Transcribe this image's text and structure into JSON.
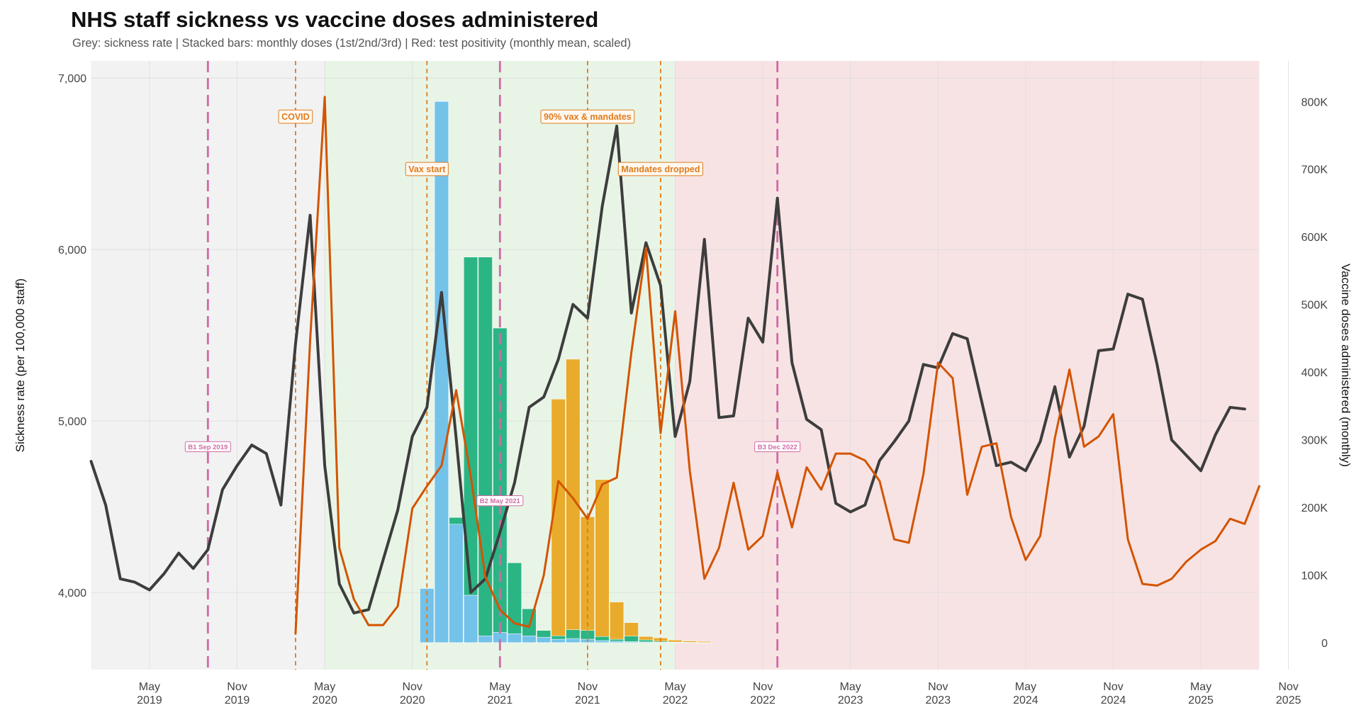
{
  "title": "NHS staff sickness vs vaccine doses administered",
  "subtitle": "Grey: sickness rate | Stacked bars: monthly doses (1st/2nd/3rd) | Red: test positivity (monthly mean, scaled)",
  "colors": {
    "sickness": "#3d3d3d",
    "positivity": "#d35400",
    "dose1": "#73c2ea",
    "dose2": "#2bb585",
    "dose3": "#e8ab2b",
    "phase_pre": "#f2f2f2",
    "phase_mandate": "#e8f5e6",
    "phase_post": "#f8e3e4",
    "event_line": "#e07b1d",
    "baseline_line": "#d06aa5"
  },
  "chart_data": {
    "type": "line",
    "start_month": "2019-01",
    "x_axis_ticks": [
      {
        "month": "2019-05",
        "label1": "May",
        "label2": "2019"
      },
      {
        "month": "2019-11",
        "label1": "Nov",
        "label2": "2019"
      },
      {
        "month": "2020-05",
        "label1": "May",
        "label2": "2020"
      },
      {
        "month": "2020-11",
        "label1": "Nov",
        "label2": "2020"
      },
      {
        "month": "2021-05",
        "label1": "May",
        "label2": "2021"
      },
      {
        "month": "2021-11",
        "label1": "Nov",
        "label2": "2021"
      },
      {
        "month": "2022-05",
        "label1": "May",
        "label2": "2022"
      },
      {
        "month": "2022-11",
        "label1": "Nov",
        "label2": "2022"
      },
      {
        "month": "2023-05",
        "label1": "May",
        "label2": "2023"
      },
      {
        "month": "2023-11",
        "label1": "Nov",
        "label2": "2023"
      },
      {
        "month": "2024-05",
        "label1": "May",
        "label2": "2024"
      },
      {
        "month": "2024-11",
        "label1": "Nov",
        "label2": "2024"
      },
      {
        "month": "2025-05",
        "label1": "May",
        "label2": "2025"
      },
      {
        "month": "2025-11",
        "label1": "Nov",
        "label2": "2025"
      }
    ],
    "y_left": {
      "label": "Sickness rate (per 100,000 staff)",
      "range": [
        3550,
        7100
      ],
      "ticks": [
        4000,
        5000,
        6000,
        7000
      ],
      "tick_labels": [
        "4,000",
        "5,000",
        "6,000",
        "7,000"
      ]
    },
    "y_right": {
      "label": "Vaccine doses administered (monthly)",
      "range": [
        -40000,
        860000
      ],
      "ticks": [
        0,
        100000,
        200000,
        300000,
        400000,
        500000,
        600000,
        700000,
        800000
      ],
      "tick_labels": [
        "0",
        "100K",
        "200K",
        "300K",
        "400K",
        "500K",
        "600K",
        "700K",
        "800K"
      ]
    },
    "phases": [
      {
        "name": "pre",
        "from": "2019-01",
        "to": "2020-05"
      },
      {
        "name": "mandate",
        "from": "2020-05",
        "to": "2022-05"
      },
      {
        "name": "post",
        "from": "2022-05",
        "to": "2025-09"
      }
    ],
    "event_lines": [
      {
        "month": "2020-03",
        "label": "COVID",
        "label_y": 6775
      },
      {
        "month": "2020-12",
        "label": "Vax start",
        "label_y": 6470
      },
      {
        "month": "2021-11",
        "label": "90% vax & mandates",
        "label_y": 6775
      },
      {
        "month": "2022-04",
        "label": "Mandates dropped",
        "label_y": 6470
      }
    ],
    "baseline_markers": [
      {
        "month": "2019-09",
        "label": "B1  Sep 2019",
        "label_y": 4850
      },
      {
        "month": "2021-05",
        "label": "B2  May 2021",
        "label_y": 4535
      },
      {
        "month": "2022-12",
        "label": "B3  Dec 2022",
        "label_y": 4850
      }
    ],
    "series": [
      {
        "name": "Sickness rate",
        "axis": "left",
        "start": "2019-01",
        "values": [
          4765,
          4510,
          4080,
          4060,
          4015,
          4110,
          4230,
          4140,
          4250,
          4600,
          4740,
          4860,
          4810,
          4510,
          5450,
          6200,
          4740,
          4050,
          3880,
          3900,
          4190,
          4480,
          4910,
          5080,
          5750,
          4900,
          4000,
          4080,
          4350,
          4640,
          5080,
          5140,
          5360,
          5680,
          5600,
          6250,
          6720,
          5630,
          6040,
          5790,
          4910,
          5230,
          6060,
          5020,
          5030,
          5600,
          5460,
          6300,
          5340,
          5010,
          4950,
          4520,
          4470,
          4510,
          4770,
          4880,
          5000,
          5330,
          5310,
          5510,
          5480,
          5110,
          4740,
          4760,
          4710,
          4880,
          5200,
          4790,
          4970,
          5410,
          5420,
          5740,
          5710,
          5330,
          4890,
          4800,
          4710,
          4920,
          5080,
          5070
        ]
      },
      {
        "name": "Test positivity (scaled)",
        "axis": "left",
        "start": "2020-03",
        "values": [
          3760,
          5470,
          6890,
          4260,
          3960,
          3810,
          3810,
          3920,
          4490,
          4620,
          4740,
          5180,
          4680,
          4090,
          3900,
          3820,
          3800,
          4100,
          4650,
          4550,
          4430,
          4630,
          4670,
          5400,
          6010,
          4930,
          5640,
          4710,
          4080,
          4260,
          4640,
          4250,
          4330,
          4700,
          4380,
          4730,
          4600,
          4810,
          4810,
          4770,
          4650,
          4310,
          4290,
          4690,
          5340,
          5250,
          4570,
          4850,
          4870,
          4440,
          4190,
          4330,
          4900,
          5300,
          4850,
          4910,
          5040,
          4310,
          4050,
          4040,
          4080,
          4180,
          4250,
          4300,
          4430,
          4400,
          4620
        ]
      }
    ],
    "bars": {
      "axis": "right",
      "start": "2020-12",
      "stack_names": [
        "1st dose",
        "2nd dose",
        "3rd dose"
      ],
      "dose1": [
        80000,
        800000,
        175000,
        70000,
        10000,
        15000,
        13000,
        10000,
        8000,
        5000,
        6000,
        5000,
        3000,
        2000,
        1500,
        1000,
        500,
        300,
        200,
        100
      ],
      "dose2": [
        0,
        0,
        10000,
        500000,
        560000,
        450000,
        105000,
        40000,
        10000,
        5000,
        13000,
        13000,
        6000,
        3000,
        8000,
        3000,
        1500,
        500,
        200,
        100
      ],
      "dose3": [
        0,
        0,
        0,
        0,
        0,
        0,
        0,
        0,
        0,
        350000,
        400000,
        168000,
        232000,
        55000,
        20000,
        5000,
        5000,
        3000,
        2000,
        1500
      ]
    }
  }
}
